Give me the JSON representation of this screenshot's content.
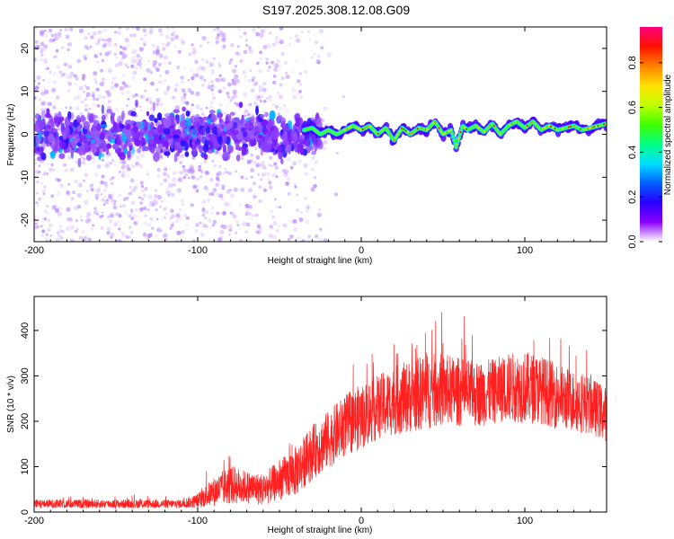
{
  "figure": {
    "title": "S197.2025.308.12.08.G09"
  },
  "chart_data": [
    {
      "type": "heatmap",
      "name": "spectrogram",
      "xlabel": "Height of straight line (km)",
      "ylabel": "Frequency (Hz)",
      "xlim": [
        -200,
        150
      ],
      "ylim": [
        -25,
        25
      ],
      "xticks": [
        "-200",
        "-100",
        "0",
        "100"
      ],
      "yticks": [
        "-20",
        "-10",
        "0",
        "10",
        "20"
      ],
      "colorbar": {
        "label": "Normalized spectral amplitude",
        "range": [
          0,
          0.96
        ],
        "ticks": [
          "0.0",
          "0.2",
          "0.4",
          "0.6",
          "0.8"
        ],
        "colors": [
          "#ffffff",
          "#8a00ff",
          "#2a00ff",
          "#0060ff",
          "#00e0ff",
          "#00ff80",
          "#40ff00",
          "#c0ff00",
          "#ffe000",
          "#ff8000",
          "#ff1000",
          "#ff0080"
        ]
      },
      "ridge_frequency_hz": [
        [
          -35,
          1.0
        ],
        [
          -30,
          1.5
        ],
        [
          -25,
          0.0
        ],
        [
          -20,
          1.0
        ],
        [
          -15,
          0.0
        ],
        [
          -10,
          1.0
        ],
        [
          -5,
          2.0
        ],
        [
          0,
          1.0
        ],
        [
          5,
          2.0
        ],
        [
          10,
          0.0
        ],
        [
          15,
          1.5
        ],
        [
          20,
          -1.5
        ],
        [
          25,
          1.5
        ],
        [
          30,
          0.0
        ],
        [
          35,
          1.5
        ],
        [
          40,
          1.0
        ],
        [
          45,
          3.0
        ],
        [
          50,
          0.0
        ],
        [
          55,
          1.0
        ],
        [
          58,
          -3.0
        ],
        [
          62,
          2.0
        ],
        [
          65,
          1.0
        ],
        [
          70,
          2.0
        ],
        [
          75,
          0.5
        ],
        [
          80,
          2.5
        ],
        [
          85,
          0.0
        ],
        [
          90,
          2.0
        ],
        [
          95,
          3.0
        ],
        [
          100,
          1.5
        ],
        [
          105,
          3.0
        ],
        [
          110,
          1.0
        ],
        [
          115,
          2.0
        ],
        [
          120,
          1.0
        ],
        [
          125,
          1.5
        ],
        [
          130,
          2.0
        ],
        [
          135,
          1.0
        ],
        [
          140,
          1.5
        ],
        [
          145,
          2.0
        ],
        [
          150,
          2.5
        ]
      ],
      "noise_band_hz": [
        -5,
        5
      ],
      "noise_region_km": [
        -200,
        -35
      ]
    },
    {
      "type": "line",
      "name": "snr",
      "xlabel": "Height of straight line (km)",
      "ylabel": "SNR (10 * v/v)",
      "xlim": [
        -200,
        150
      ],
      "ylim": [
        0,
        475
      ],
      "xticks": [
        "-200",
        "-100",
        "0",
        "100"
      ],
      "yticks": [
        "0",
        "100",
        "200",
        "300",
        "400"
      ],
      "color": "#ff2020",
      "envelope": {
        "x": [
          -200,
          -150,
          -110,
          -100,
          -90,
          -80,
          -70,
          -60,
          -50,
          -40,
          -30,
          -20,
          -10,
          0,
          10,
          20,
          30,
          40,
          50,
          60,
          70,
          80,
          90,
          100,
          110,
          120,
          130,
          140,
          150
        ],
        "mean": [
          18,
          18,
          18,
          25,
          45,
          60,
          55,
          50,
          70,
          90,
          130,
          160,
          190,
          210,
          230,
          245,
          255,
          265,
          270,
          265,
          260,
          265,
          275,
          275,
          270,
          255,
          245,
          235,
          215
        ],
        "spread": [
          12,
          12,
          12,
          20,
          40,
          55,
          45,
          45,
          55,
          70,
          75,
          80,
          85,
          90,
          90,
          95,
          100,
          105,
          100,
          95,
          90,
          90,
          95,
          100,
          95,
          90,
          85,
          80,
          75
        ]
      }
    }
  ]
}
